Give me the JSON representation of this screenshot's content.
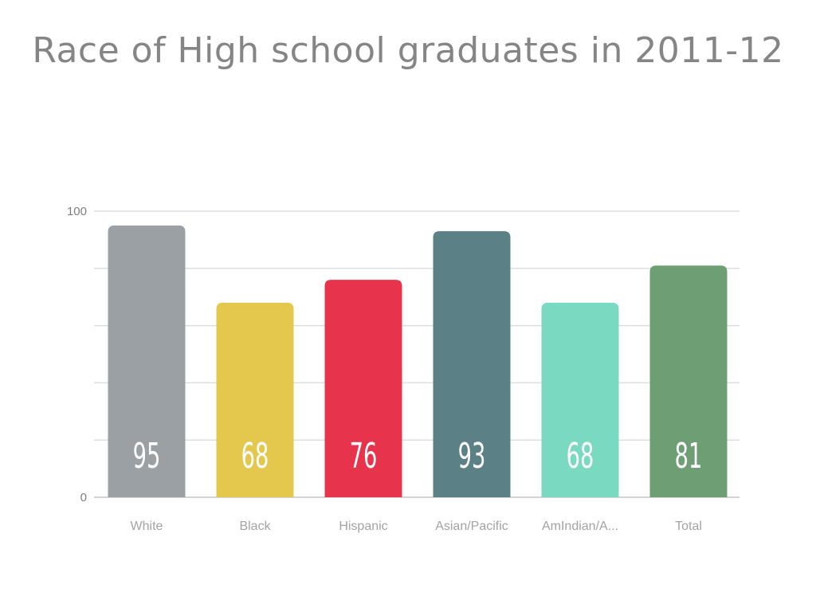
{
  "chart_data": {
    "type": "bar",
    "title": "Race of High school graduates in 2011-12",
    "xlabel": "",
    "ylabel": "",
    "categories": [
      "White",
      "Black",
      "Hispanic",
      "Asian/Pacific",
      "AmIndian/A...",
      "Total"
    ],
    "values": [
      95,
      68,
      76,
      93,
      68,
      81
    ],
    "colors": [
      "#9aa0a3",
      "#e4c84e",
      "#e8334c",
      "#5b8186",
      "#7ad9c1",
      "#6e9f74"
    ],
    "ylim": [
      0,
      100
    ],
    "yticks": [
      0,
      100
    ],
    "grid": true,
    "legend": "none",
    "data_labels": true
  }
}
